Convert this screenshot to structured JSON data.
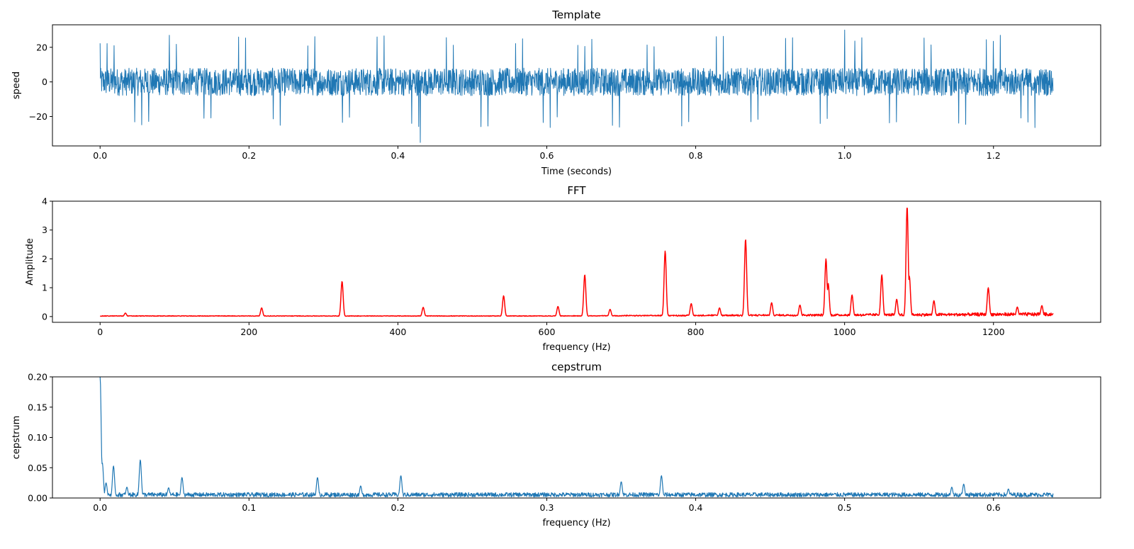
{
  "chart_data": [
    {
      "type": "line",
      "title": "Template",
      "xlabel": "Time (seconds)",
      "ylabel": "speed",
      "xlim": [
        -0.064,
        1.344
      ],
      "ylim": [
        -37,
        33
      ],
      "xticks": [
        0.0,
        0.2,
        0.4,
        0.6,
        0.8,
        1.0,
        1.2
      ],
      "xtick_labels": [
        "0.0",
        "0.2",
        "0.4",
        "0.6",
        "0.8",
        "1.0",
        "1.2"
      ],
      "yticks": [
        -20,
        0,
        20
      ],
      "ytick_labels": [
        "−20",
        "0",
        "20"
      ],
      "color": "#1f77b4",
      "series": [
        {
          "name": "speed",
          "x_range": [
            0,
            1.28
          ],
          "noise_amplitude": 8,
          "impulse_period": 0.0093,
          "impulse_amplitude": 27,
          "extremes": {
            "max": 30,
            "min": -35
          }
        }
      ]
    },
    {
      "type": "line",
      "title": "FFT",
      "xlabel": "frequency (Hz)",
      "ylabel": "Amplitude",
      "xlim": [
        -64,
        1344
      ],
      "ylim": [
        -0.2,
        4.0
      ],
      "xticks": [
        0,
        200,
        400,
        600,
        800,
        1000,
        1200
      ],
      "xtick_labels": [
        "0",
        "200",
        "400",
        "600",
        "800",
        "1000",
        "1200"
      ],
      "yticks": [
        0,
        1,
        2,
        3,
        4
      ],
      "ytick_labels": [
        "0",
        "1",
        "2",
        "3",
        "4"
      ],
      "color": "#ff0000",
      "series": [
        {
          "name": "amplitude",
          "x_range": [
            0,
            1280
          ],
          "baseline": 0.02,
          "peaks": [
            {
              "x": 34,
              "y": 0.12
            },
            {
              "x": 217,
              "y": 0.3
            },
            {
              "x": 325,
              "y": 1.22
            },
            {
              "x": 434,
              "y": 0.32
            },
            {
              "x": 542,
              "y": 0.72
            },
            {
              "x": 615,
              "y": 0.35
            },
            {
              "x": 651,
              "y": 1.45
            },
            {
              "x": 685,
              "y": 0.25
            },
            {
              "x": 759,
              "y": 2.27
            },
            {
              "x": 794,
              "y": 0.45
            },
            {
              "x": 832,
              "y": 0.3
            },
            {
              "x": 867,
              "y": 2.68
            },
            {
              "x": 902,
              "y": 0.48
            },
            {
              "x": 940,
              "y": 0.4
            },
            {
              "x": 975,
              "y": 2.0
            },
            {
              "x": 978,
              "y": 1.15
            },
            {
              "x": 1010,
              "y": 0.75
            },
            {
              "x": 1050,
              "y": 1.45
            },
            {
              "x": 1070,
              "y": 0.6
            },
            {
              "x": 1084,
              "y": 3.82
            },
            {
              "x": 1087,
              "y": 1.4
            },
            {
              "x": 1120,
              "y": 0.55
            },
            {
              "x": 1193,
              "y": 1.0
            },
            {
              "x": 1232,
              "y": 0.33
            },
            {
              "x": 1265,
              "y": 0.38
            }
          ]
        }
      ]
    },
    {
      "type": "line",
      "title": "cepstrum",
      "xlabel": "frequency (Hz)",
      "ylabel": "cepstrum",
      "xlim": [
        -0.032,
        0.672
      ],
      "ylim": [
        0.0,
        0.2
      ],
      "xticks": [
        0.0,
        0.1,
        0.2,
        0.3,
        0.4,
        0.5,
        0.6
      ],
      "xtick_labels": [
        "0.0",
        "0.1",
        "0.2",
        "0.3",
        "0.4",
        "0.5",
        "0.6"
      ],
      "yticks": [
        0.0,
        0.05,
        0.1,
        0.15,
        0.2
      ],
      "ytick_labels": [
        "0.00",
        "0.05",
        "0.10",
        "0.15",
        "0.20"
      ],
      "color": "#1f77b4",
      "series": [
        {
          "name": "cepstrum",
          "x_range": [
            0,
            0.64
          ],
          "baseline": 0.006,
          "peaks": [
            {
              "x": 0.0,
              "y": 0.2
            },
            {
              "x": 0.0015,
              "y": 0.058
            },
            {
              "x": 0.004,
              "y": 0.025
            },
            {
              "x": 0.009,
              "y": 0.053
            },
            {
              "x": 0.018,
              "y": 0.018
            },
            {
              "x": 0.027,
              "y": 0.063
            },
            {
              "x": 0.046,
              "y": 0.017
            },
            {
              "x": 0.055,
              "y": 0.034
            },
            {
              "x": 0.146,
              "y": 0.034
            },
            {
              "x": 0.175,
              "y": 0.02
            },
            {
              "x": 0.202,
              "y": 0.037
            },
            {
              "x": 0.35,
              "y": 0.027
            },
            {
              "x": 0.377,
              "y": 0.037
            },
            {
              "x": 0.572,
              "y": 0.018
            },
            {
              "x": 0.58,
              "y": 0.023
            },
            {
              "x": 0.61,
              "y": 0.015
            }
          ]
        }
      ]
    }
  ]
}
